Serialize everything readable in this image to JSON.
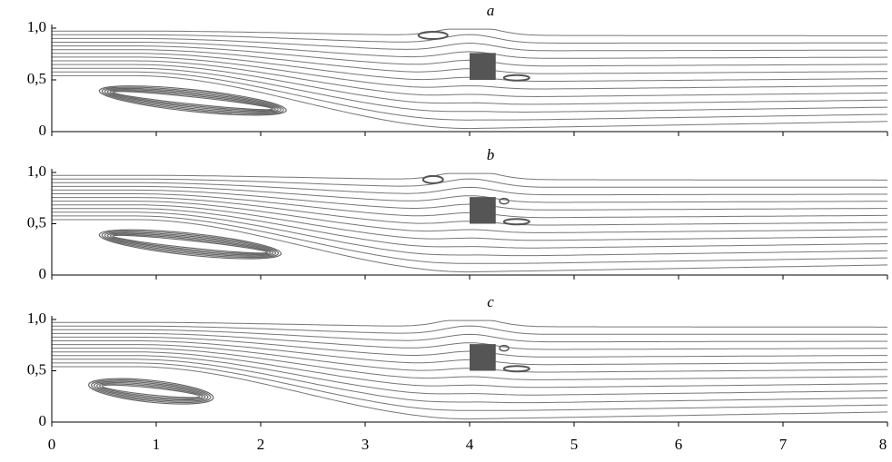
{
  "chart_data": [
    {
      "type": "streamline",
      "title": "a",
      "xlim": [
        0,
        8
      ],
      "ylim": [
        0,
        1
      ],
      "xticks": [
        0,
        1,
        2,
        3,
        4,
        5,
        6,
        7,
        8
      ],
      "yticks": [
        0,
        {
          "value": 0.5,
          "label": "0,5"
        },
        {
          "value": 1,
          "label": "1,0"
        }
      ]
    },
    {
      "type": "streamline",
      "title": "b",
      "xlim": [
        0,
        8
      ],
      "ylim": [
        0,
        1
      ],
      "xticks": [
        0,
        1,
        2,
        3,
        4,
        5,
        6,
        7,
        8
      ],
      "yticks": [
        0,
        {
          "value": 0.5,
          "label": "0,5"
        },
        {
          "value": 1,
          "label": "1,0"
        }
      ]
    },
    {
      "type": "streamline",
      "title": "c",
      "xlim": [
        0,
        8
      ],
      "ylim": [
        0,
        1
      ],
      "xticks": [
        0,
        1,
        2,
        3,
        4,
        5,
        6,
        7,
        8
      ],
      "yticks": [
        0,
        {
          "value": 0.5,
          "label": "0,5"
        },
        {
          "value": 1,
          "label": "1,0"
        }
      ]
    }
  ]
}
